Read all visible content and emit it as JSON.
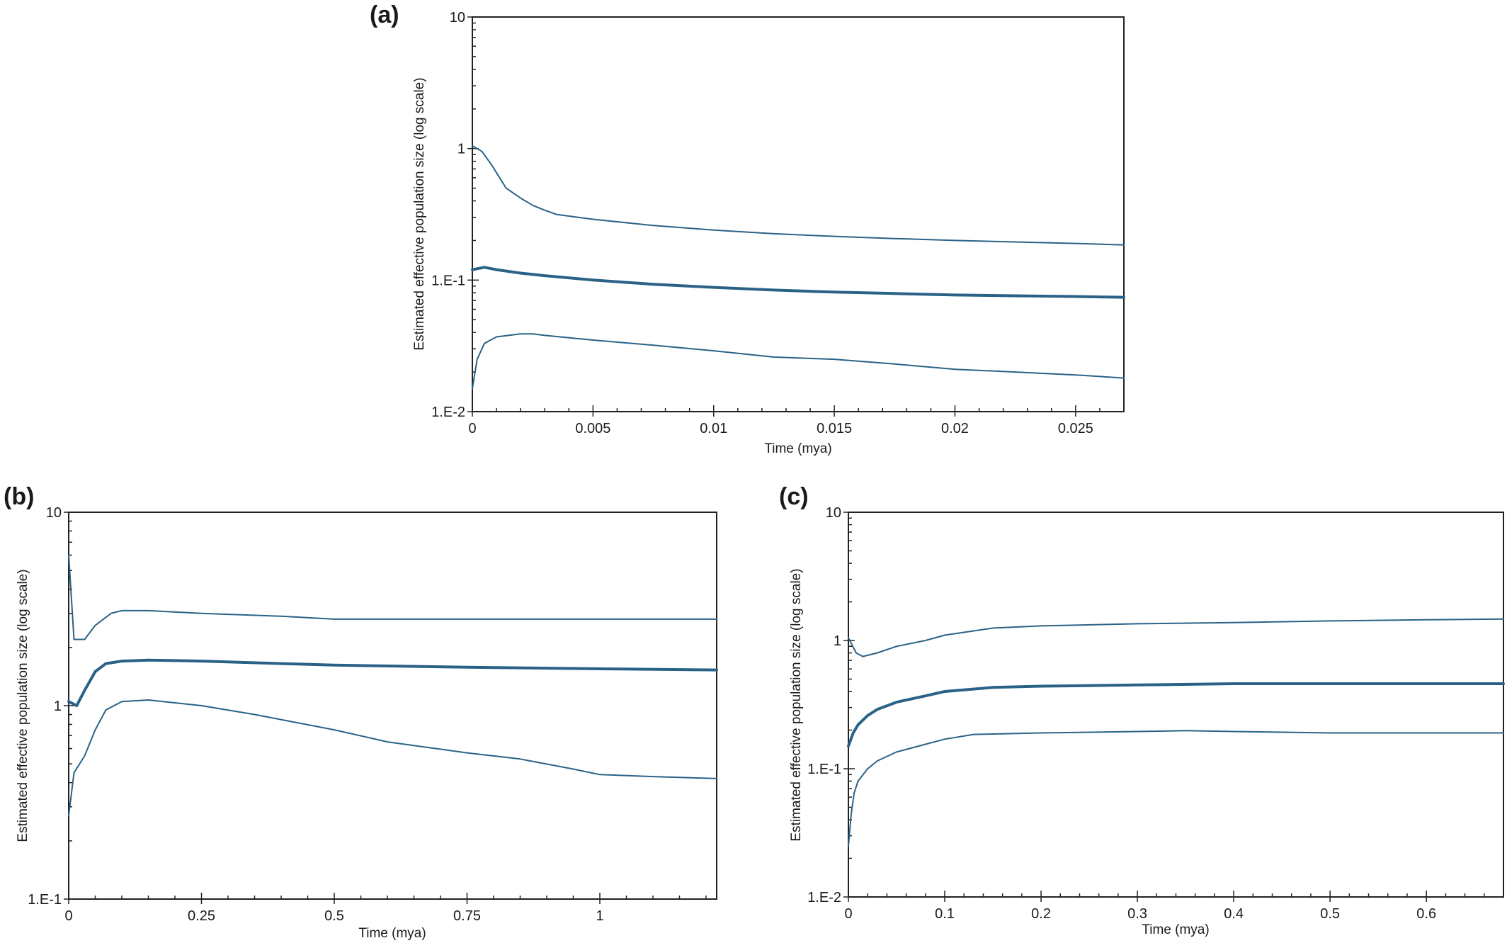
{
  "chart_data": [
    {
      "panel": "(a)",
      "type": "line",
      "xlabel": "Time (mya)",
      "ylabel": "Estimated effective population size (log scale)",
      "xlim": [
        0,
        0.027
      ],
      "ylim": [
        0.01,
        10
      ],
      "yscale": "log",
      "xticks": [
        0,
        0.005,
        0.01,
        0.015,
        0.02,
        0.025
      ],
      "xtick_labels": [
        "0",
        "0.005",
        "0.01",
        "0.015",
        "0.02",
        "0.025"
      ],
      "yticks": [
        0.01,
        0.1,
        1,
        10
      ],
      "ytick_labels": [
        "1.E-2",
        "1.E-1",
        "1",
        "10"
      ],
      "line_color": "#2a6287",
      "series": [
        {
          "role": "upper",
          "x": [
            0,
            0.0004,
            0.0008,
            0.0014,
            0.002,
            0.0025,
            0.003,
            0.0035,
            0.005,
            0.0075,
            0.01,
            0.0125,
            0.015,
            0.0175,
            0.02,
            0.0225,
            0.025,
            0.027
          ],
          "y": [
            1.05,
            0.95,
            0.75,
            0.5,
            0.42,
            0.37,
            0.34,
            0.315,
            0.29,
            0.26,
            0.24,
            0.225,
            0.215,
            0.207,
            0.2,
            0.195,
            0.19,
            0.185
          ]
        },
        {
          "role": "median",
          "x": [
            0,
            0.0005,
            0.001,
            0.002,
            0.003,
            0.005,
            0.0075,
            0.01,
            0.0125,
            0.015,
            0.0175,
            0.02,
            0.0225,
            0.025,
            0.027
          ],
          "y": [
            0.12,
            0.125,
            0.12,
            0.113,
            0.108,
            0.1,
            0.093,
            0.088,
            0.084,
            0.081,
            0.079,
            0.077,
            0.076,
            0.075,
            0.074
          ]
        },
        {
          "role": "lower",
          "x": [
            0,
            0.0002,
            0.0005,
            0.001,
            0.0015,
            0.002,
            0.0025,
            0.003,
            0.005,
            0.0075,
            0.01,
            0.0125,
            0.015,
            0.0175,
            0.02,
            0.0225,
            0.025,
            0.027
          ],
          "y": [
            0.015,
            0.025,
            0.033,
            0.037,
            0.038,
            0.039,
            0.039,
            0.038,
            0.035,
            0.032,
            0.029,
            0.026,
            0.025,
            0.023,
            0.021,
            0.02,
            0.019,
            0.018
          ]
        }
      ]
    },
    {
      "panel": "(b)",
      "type": "line",
      "xlabel": "Time (mya)",
      "ylabel": "Estimated effective population size (log scale)",
      "xlim": [
        0,
        1.22
      ],
      "ylim": [
        0.1,
        10
      ],
      "yscale": "log",
      "xticks": [
        0,
        0.25,
        0.5,
        0.75,
        1
      ],
      "xtick_labels": [
        "0",
        "0.25",
        "0.5",
        "0.75",
        "1"
      ],
      "yticks": [
        0.1,
        1,
        10
      ],
      "ytick_labels": [
        "1.E-1",
        "1",
        "10"
      ],
      "line_color": "#2a6287",
      "series": [
        {
          "role": "upper",
          "x": [
            0,
            0.01,
            0.03,
            0.05,
            0.08,
            0.1,
            0.15,
            0.25,
            0.4,
            0.5,
            0.75,
            1,
            1.22
          ],
          "y": [
            6.0,
            2.2,
            2.2,
            2.6,
            3.0,
            3.1,
            3.1,
            3.0,
            2.9,
            2.8,
            2.8,
            2.8,
            2.8
          ]
        },
        {
          "role": "median",
          "x": [
            0,
            0.015,
            0.03,
            0.05,
            0.07,
            0.1,
            0.15,
            0.25,
            0.4,
            0.5,
            0.75,
            1,
            1.22
          ],
          "y": [
            1.05,
            1.0,
            1.2,
            1.5,
            1.65,
            1.7,
            1.72,
            1.7,
            1.65,
            1.62,
            1.58,
            1.55,
            1.53
          ]
        },
        {
          "role": "lower",
          "x": [
            0,
            0.01,
            0.03,
            0.05,
            0.07,
            0.1,
            0.15,
            0.25,
            0.35,
            0.5,
            0.6,
            0.75,
            0.85,
            0.95,
            1,
            1.1,
            1.22
          ],
          "y": [
            0.27,
            0.45,
            0.55,
            0.75,
            0.95,
            1.05,
            1.07,
            1.0,
            0.9,
            0.75,
            0.65,
            0.57,
            0.53,
            0.47,
            0.44,
            0.43,
            0.42
          ]
        }
      ]
    },
    {
      "panel": "(c)",
      "type": "line",
      "xlabel": "Time (mya)",
      "ylabel": "Estimated effective population size (log scale)",
      "xlim": [
        0,
        0.68
      ],
      "ylim": [
        0.01,
        10
      ],
      "yscale": "log",
      "xticks": [
        0,
        0.1,
        0.2,
        0.3,
        0.4,
        0.5,
        0.6
      ],
      "xtick_labels": [
        "0",
        "0.1",
        "0.2",
        "0.3",
        "0.4",
        "0.5",
        "0.6"
      ],
      "yticks": [
        0.01,
        0.1,
        1,
        10
      ],
      "ytick_labels": [
        "1.E-2",
        "1.E-1",
        "1",
        "10"
      ],
      "line_color": "#2a6287",
      "series": [
        {
          "role": "upper",
          "x": [
            0,
            0.008,
            0.015,
            0.03,
            0.05,
            0.08,
            0.1,
            0.15,
            0.2,
            0.3,
            0.4,
            0.5,
            0.6,
            0.68
          ],
          "y": [
            1.05,
            0.8,
            0.75,
            0.8,
            0.9,
            1.0,
            1.1,
            1.25,
            1.3,
            1.35,
            1.38,
            1.42,
            1.45,
            1.47
          ]
        },
        {
          "role": "median",
          "x": [
            0,
            0.005,
            0.01,
            0.02,
            0.03,
            0.05,
            0.08,
            0.1,
            0.15,
            0.2,
            0.3,
            0.4,
            0.5,
            0.6,
            0.68
          ],
          "y": [
            0.15,
            0.19,
            0.22,
            0.26,
            0.29,
            0.33,
            0.37,
            0.4,
            0.43,
            0.44,
            0.45,
            0.46,
            0.46,
            0.46,
            0.46
          ]
        },
        {
          "role": "lower",
          "x": [
            0,
            0.003,
            0.006,
            0.01,
            0.02,
            0.03,
            0.05,
            0.08,
            0.1,
            0.13,
            0.2,
            0.3,
            0.35,
            0.4,
            0.5,
            0.6,
            0.68
          ],
          "y": [
            0.025,
            0.045,
            0.065,
            0.08,
            0.1,
            0.115,
            0.135,
            0.155,
            0.17,
            0.185,
            0.19,
            0.195,
            0.198,
            0.195,
            0.19,
            0.19,
            0.19
          ]
        }
      ]
    }
  ]
}
